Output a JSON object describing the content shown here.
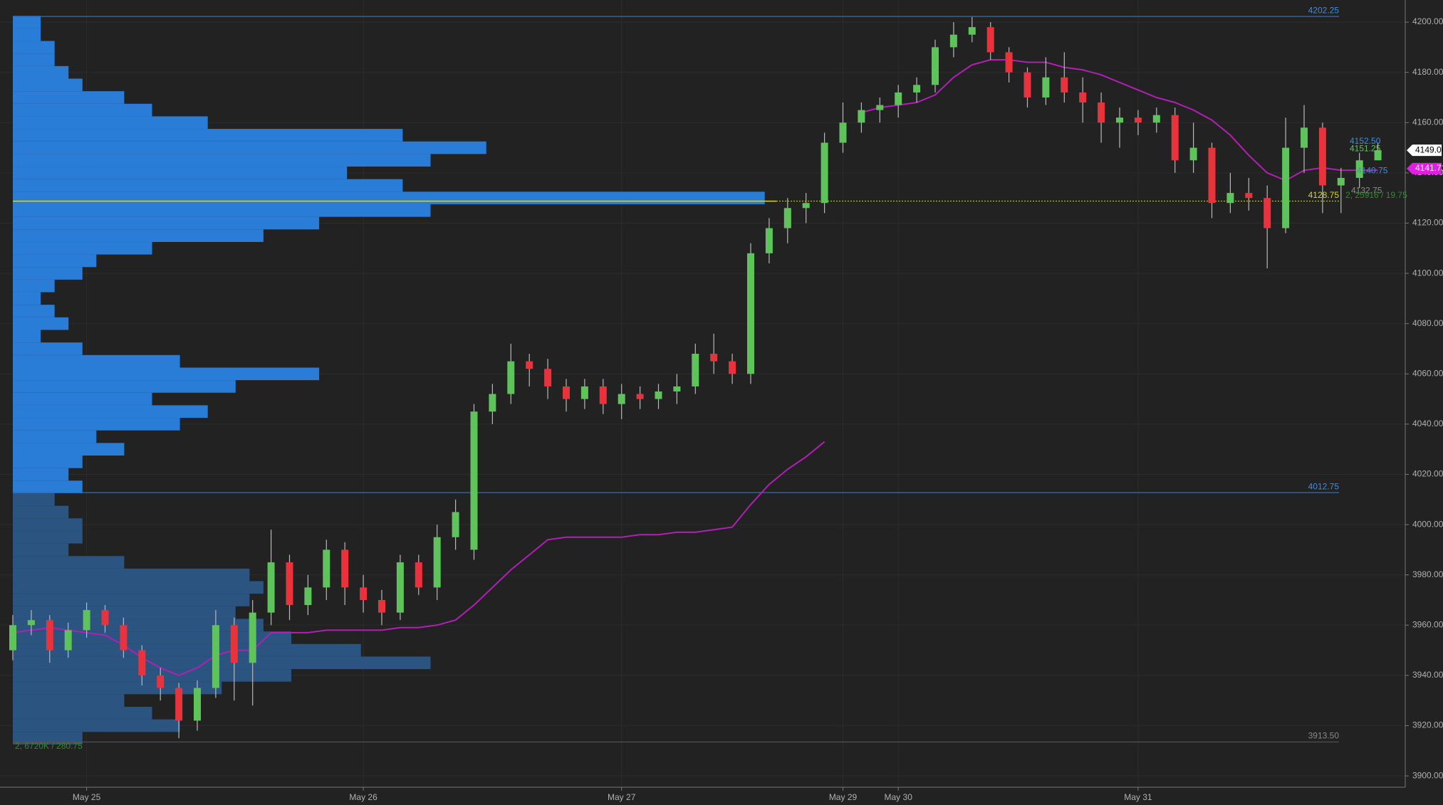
{
  "chart_data": {
    "type": "candlestick",
    "categories": [
      null,
      null,
      null,
      null,
      "May 25",
      null,
      null,
      null,
      null,
      null,
      null,
      null,
      null,
      null,
      null,
      null,
      null,
      null,
      null,
      "May 26",
      null,
      null,
      null,
      null,
      null,
      null,
      null,
      null,
      null,
      null,
      null,
      null,
      null,
      "May 27",
      null,
      null,
      null,
      null,
      null,
      null,
      null,
      null,
      null,
      null,
      null,
      "May 29",
      null,
      null,
      "May 30",
      null,
      null,
      null,
      null,
      null,
      null,
      null,
      null,
      null,
      null,
      null,
      null,
      "May 31",
      null,
      null,
      null,
      null,
      null,
      null,
      null,
      null,
      null,
      null,
      null,
      null,
      null
    ],
    "open": [
      3950,
      3960,
      3962,
      3950,
      3958,
      3966,
      3960,
      3950,
      3940,
      3935,
      3922,
      3935,
      3960,
      3945,
      3965,
      3985,
      3968,
      3975,
      3990,
      3975,
      3970,
      3965,
      3985,
      3975,
      3995,
      3990,
      4045,
      4052,
      4065,
      4062,
      4055,
      4050,
      4055,
      4048,
      4052,
      4050,
      4053,
      4055,
      4068,
      4065,
      4060,
      4108,
      4118,
      4126,
      4128,
      4152,
      4160,
      4165,
      4167,
      4172,
      4175,
      4190,
      4195,
      4198,
      4188,
      4180,
      4170,
      4178,
      4172,
      4168,
      4160,
      4162,
      4160,
      4163,
      4145,
      4150,
      4128,
      4132,
      4130,
      4118,
      4150,
      4158,
      4135,
      4138,
      4145
    ],
    "high": [
      3964,
      3966,
      3964,
      3961,
      3969,
      3968,
      3963,
      3952,
      3943,
      3937,
      3938,
      3966,
      3963,
      3970,
      3998,
      3988,
      3980,
      3994,
      3993,
      3980,
      3974,
      3988,
      3988,
      4000,
      4010,
      4048,
      4056,
      4072,
      4068,
      4066,
      4058,
      4058,
      4058,
      4056,
      4055,
      4056,
      4060,
      4072,
      4076,
      4068,
      4112,
      4122,
      4130,
      4132,
      4156,
      4168,
      4168,
      4170,
      4175,
      4178,
      4193,
      4200,
      4202,
      4200,
      4190,
      4182,
      4186,
      4188,
      4178,
      4172,
      4166,
      4165,
      4166,
      4166,
      4160,
      4152,
      4140,
      4138,
      4135,
      4162,
      4167,
      4160,
      4142,
      4148,
      4152
    ],
    "low": [
      3946,
      3956,
      3945,
      3947,
      3955,
      3957,
      3947,
      3936,
      3930,
      3915,
      3918,
      3931,
      3930,
      3928,
      3960,
      3962,
      3964,
      3970,
      3968,
      3965,
      3960,
      3962,
      3972,
      3970,
      3990,
      3986,
      4040,
      4048,
      4055,
      4050,
      4045,
      4046,
      4044,
      4042,
      4046,
      4046,
      4048,
      4052,
      4060,
      4056,
      4056,
      4104,
      4112,
      4120,
      4124,
      4148,
      4156,
      4160,
      4162,
      4168,
      4172,
      4186,
      4192,
      4185,
      4176,
      4166,
      4167,
      4168,
      4160,
      4152,
      4150,
      4155,
      4156,
      4140,
      4140,
      4122,
      4124,
      4125,
      4102,
      4116,
      4140,
      4124,
      4124,
      4134,
      4145
    ],
    "close": [
      3960,
      3962,
      3950,
      3958,
      3966,
      3960,
      3950,
      3940,
      3935,
      3922,
      3935,
      3960,
      3945,
      3965,
      3985,
      3968,
      3975,
      3990,
      3975,
      3970,
      3965,
      3985,
      3975,
      3995,
      4005,
      4045,
      4052,
      4065,
      4062,
      4055,
      4050,
      4055,
      4048,
      4052,
      4050,
      4053,
      4055,
      4068,
      4065,
      4060,
      4108,
      4118,
      4126,
      4128,
      4152,
      4160,
      4165,
      4167,
      4172,
      4175,
      4190,
      4195,
      4198,
      4188,
      4180,
      4170,
      4178,
      4172,
      4168,
      4160,
      4162,
      4160,
      4163,
      4145,
      4150,
      4128,
      4132,
      4130,
      4118,
      4150,
      4158,
      4135,
      4138,
      4145,
      4149
    ],
    "up_color": "#5fc35b",
    "down_color": "#e8323c",
    "vwap": {
      "color": "#b21fb5",
      "values": [
        3957,
        3958,
        3959,
        3958,
        3957,
        3956,
        3952,
        3947,
        3943,
        3940,
        3943,
        3948,
        3950,
        3950,
        3957,
        3957,
        3957,
        3958,
        3958,
        3958,
        3958,
        3959,
        3959,
        3960,
        3962,
        3968,
        3975,
        3982,
        3988,
        3994,
        3995,
        3995,
        3995,
        3995,
        3996,
        3996,
        3997,
        3997,
        3998,
        3999,
        4008,
        4016,
        4022,
        4027,
        4033,
        null,
        4164,
        4166,
        4167,
        4168,
        4171,
        4178,
        4183,
        4185,
        4185,
        4184,
        4184,
        4182,
        4181,
        4179,
        4176,
        4173,
        4170,
        4168,
        4165,
        4161,
        4155,
        4147,
        4140,
        4137,
        4141,
        4142,
        4141,
        4141,
        4141
      ]
    },
    "volume_profile": {
      "levels": [
        3915,
        3920,
        3925,
        3930,
        3935,
        3940,
        3945,
        3950,
        3955,
        3960,
        3965,
        3970,
        3975,
        3980,
        3985,
        3990,
        3995,
        4000,
        4005,
        4010,
        4015,
        4020,
        4025,
        4030,
        4035,
        4040,
        4045,
        4050,
        4055,
        4060,
        4065,
        4070,
        4075,
        4080,
        4085,
        4090,
        4095,
        4100,
        4105,
        4110,
        4115,
        4120,
        4125,
        4130,
        4135,
        4140,
        4145,
        4150,
        4155,
        4160,
        4165,
        4170,
        4175,
        4180,
        4185,
        4190,
        4195,
        4200
      ],
      "values": [
        5,
        12,
        10,
        8,
        15,
        20,
        30,
        25,
        20,
        18,
        16,
        17,
        18,
        17,
        8,
        4,
        5,
        5,
        4,
        3,
        5,
        4,
        5,
        8,
        6,
        12,
        14,
        10,
        16,
        22,
        12,
        5,
        2,
        4,
        3,
        2,
        3,
        5,
        6,
        10,
        18,
        22,
        30,
        54,
        28,
        24,
        30,
        34,
        28,
        14,
        10,
        8,
        5,
        4,
        3,
        3,
        2,
        2
      ],
      "xlim": [
        0,
        100
      ],
      "value_area_color": "#2a7dd6",
      "outside_color": "#2b5480"
    },
    "level_lines": [
      {
        "value": 4202.25,
        "color": "#2f6fb8"
      },
      {
        "value": 4012.75,
        "color": "#2f6fb8"
      },
      {
        "value": 3913.5,
        "label": "3913.50",
        "color": "#555555"
      },
      {
        "value": 4128.75,
        "color": "#d6d61e"
      }
    ],
    "price_labels": [
      {
        "value": 4152.5,
        "label": "4152.50",
        "color": "#3a8fe0"
      },
      {
        "value": 4151.25,
        "color": "#5fc35b"
      },
      {
        "value": 4140.75,
        "color": "#3a8fe0"
      },
      {
        "value": 4132.75,
        "color": "#888888"
      }
    ],
    "notes": [
      "2, 25916 / 19.75",
      "2, 6720K / 280.75"
    ],
    "last_price": {
      "value": 4149,
      "label": "4149.00"
    },
    "vwap_last": 4141.71,
    "ylim": [
      3895.5,
      4208.8
    ],
    "yticks": [
      {
        "value": 3900,
        "label": "3900.00"
      },
      {
        "value": 3920,
        "label": "3920.00"
      },
      {
        "value": 3940,
        "label": "3940.00"
      },
      {
        "value": 3960,
        "label": "3960.00"
      },
      {
        "value": 3980,
        "label": "3980.00"
      },
      {
        "value": 4000,
        "label": "4000.00"
      },
      {
        "value": 4020,
        "label": "4020.00"
      },
      {
        "value": 4040,
        "label": "4040.00"
      },
      {
        "value": 4060,
        "label": "4060.00"
      },
      {
        "value": 4080,
        "label": "4080.00"
      },
      {
        "value": 4100,
        "label": "4100.00"
      },
      {
        "value": 4120,
        "label": "4120.00"
      },
      {
        "value": 4140,
        "label": "4140.00"
      },
      {
        "value": 4160,
        "label": "4160.00"
      },
      {
        "value": 4180,
        "label": "4180.00"
      },
      {
        "value": 4200,
        "label": "4200.00"
      }
    ]
  }
}
